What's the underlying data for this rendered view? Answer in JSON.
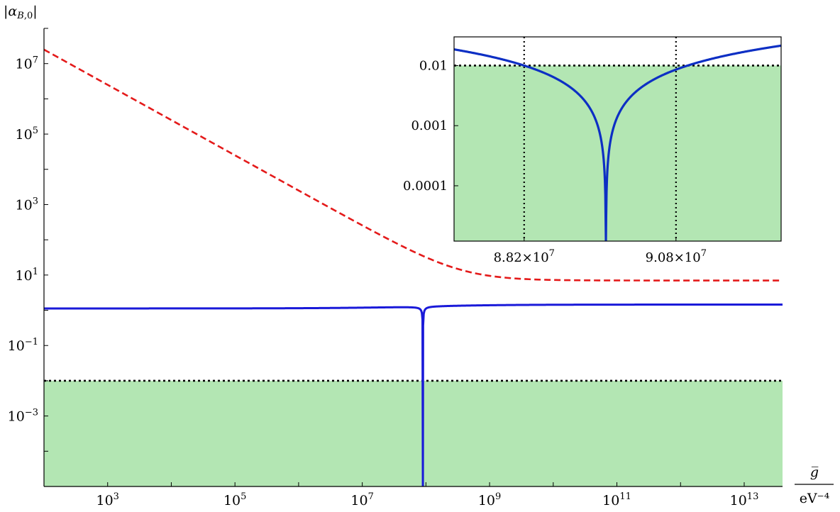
{
  "colors": {
    "blue": "#1a1ad9",
    "blue_inset": "#0d2fc4",
    "red": "#e41a1a",
    "green_fill": "#b3e6b3",
    "dotted": "#000000"
  },
  "chart_data": [
    {
      "type": "line",
      "x_scale": "log",
      "y_scale": "log",
      "xlim": [
        100,
        40000000000000
      ],
      "ylim": [
        1e-05,
        100000000.0
      ],
      "y_axis_label": "|α_{B,0}|",
      "x_axis_label_numerator": "g̅",
      "x_axis_label_denominator": "eV⁻⁴",
      "x_ticks": [
        {
          "value": 1000,
          "label_base": "10",
          "label_exp": "3"
        },
        {
          "value": 100000,
          "label_base": "10",
          "label_exp": "5"
        },
        {
          "value": 10000000,
          "label_base": "10",
          "label_exp": "7"
        },
        {
          "value": 1000000000,
          "label_base": "10",
          "label_exp": "9"
        },
        {
          "value": 100000000000,
          "label_base": "10",
          "label_exp": "11"
        },
        {
          "value": 10000000000000,
          "label_base": "10",
          "label_exp": "13"
        }
      ],
      "y_ticks": [
        {
          "value": 10000000,
          "label_base": "10",
          "label_exp": "7"
        },
        {
          "value": 100000,
          "label_base": "10",
          "label_exp": "5"
        },
        {
          "value": 1000,
          "label_base": "10",
          "label_exp": "3"
        },
        {
          "value": 10,
          "label_base": "10",
          "label_exp": "1"
        },
        {
          "value": 0.1,
          "label_base": "10",
          "label_exp": "−1"
        },
        {
          "value": 0.001,
          "label_base": "10",
          "label_exp": "−3"
        }
      ],
      "series": [
        {
          "style": "dashed",
          "color": "red",
          "points": [
            [
              100,
              25000000
            ],
            [
              1000,
              2500000
            ],
            [
              10000,
              250000
            ],
            [
              100000,
              25000
            ],
            [
              1000000,
              2500
            ],
            [
              10000000,
              260
            ],
            [
              100000000,
              30
            ],
            [
              1000000000,
              10
            ],
            [
              10000000000,
              7.5
            ],
            [
              100000000000,
              7.1
            ],
            [
              1000000000000,
              7.0
            ],
            [
              40000000000000,
              7.0
            ]
          ]
        },
        {
          "style": "solid",
          "color": "blue",
          "description_free": true,
          "baseline_low": 1.15,
          "baseline_high": 1.45,
          "dip_center": 89600000
        }
      ],
      "threshold": {
        "value": 0.01,
        "style": "dotted"
      },
      "shaded_region": {
        "from": 1e-05,
        "to": 0.01
      }
    },
    {
      "type": "line",
      "inset": true,
      "x_scale": "linear",
      "y_scale": "log",
      "xlim": [
        87000000,
        92600000
      ],
      "ylim": [
        1.2e-05,
        0.03
      ],
      "x_ticks": [
        {
          "value": 88200000,
          "label": "8.82×10",
          "exp": "7"
        },
        {
          "value": 90800000,
          "label": "9.08×10",
          "exp": "7"
        }
      ],
      "y_ticks": [
        {
          "value": 0.01,
          "label": "0.01"
        },
        {
          "value": 0.001,
          "label": "0.001"
        },
        {
          "value": 0.0001,
          "label": "0.0001"
        }
      ],
      "threshold": {
        "value": 0.01,
        "style": "dotted"
      },
      "vertical_markers": [
        88200000,
        90800000
      ],
      "dip_center": 89600000,
      "shaded_region": {
        "from": 1.2e-05,
        "to": 0.01
      }
    }
  ]
}
